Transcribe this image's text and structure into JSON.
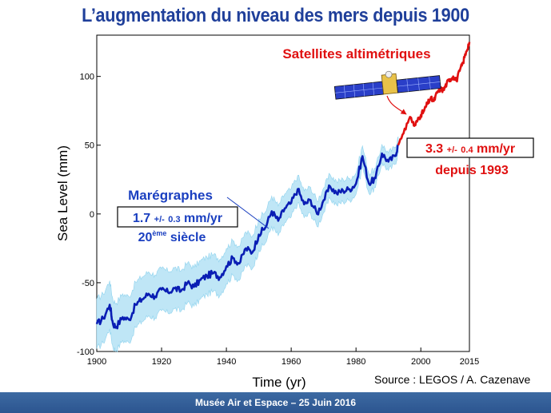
{
  "title": "L’augmentation du niveau des mers depuis 1900",
  "footer": "Musée Air et Espace – 25 Juin 2016",
  "source": "Source : LEGOS / A. Cazenave",
  "colors": {
    "title": "#1f3f9a",
    "tide": "#0a1eb4",
    "band": "#bfe6f6",
    "satellite": "#e01010"
  },
  "icons": [
    "satellite-icon"
  ],
  "chart_data": {
    "type": "line",
    "xlabel": "Time (yr)",
    "ylabel": "Sea Level (mm)",
    "xlim": [
      1900,
      2015
    ],
    "ylim": [
      -100,
      130
    ],
    "xticks": [
      1900,
      1920,
      1940,
      1960,
      1980,
      2000,
      2015
    ],
    "yticks": [
      -100,
      -50,
      0,
      50,
      100
    ],
    "grid": false,
    "series": [
      {
        "name": "Marégraphes",
        "x": [
          1900,
          1902,
          1904,
          1905,
          1906,
          1908,
          1910,
          1912,
          1914,
          1916,
          1918,
          1920,
          1922,
          1924,
          1926,
          1928,
          1930,
          1932,
          1934,
          1936,
          1938,
          1940,
          1942,
          1944,
          1946,
          1948,
          1950,
          1952,
          1954,
          1956,
          1958,
          1960,
          1962,
          1964,
          1966,
          1968,
          1970,
          1972,
          1974,
          1976,
          1978,
          1980,
          1982,
          1984,
          1986,
          1988,
          1990,
          1992,
          1993
        ],
        "y": [
          -80,
          -76,
          -66,
          -80,
          -82,
          -75,
          -77,
          -66,
          -62,
          -58,
          -60,
          -55,
          -57,
          -54,
          -56,
          -50,
          -53,
          -48,
          -45,
          -43,
          -46,
          -38,
          -32,
          -36,
          -25,
          -28,
          -15,
          -10,
          2,
          -5,
          4,
          8,
          18,
          7,
          10,
          0,
          10,
          20,
          15,
          17,
          18,
          22,
          42,
          22,
          26,
          44,
          38,
          42,
          50
        ]
      },
      {
        "name": "Satellites altimétriques",
        "x": [
          1993,
          1995,
          1997,
          1998,
          1999,
          2000,
          2001,
          2002,
          2003,
          2004,
          2005,
          2006,
          2007,
          2008,
          2009,
          2010,
          2011,
          2012,
          2013,
          2014,
          2015
        ],
        "y": [
          50,
          62,
          70,
          64,
          68,
          72,
          75,
          80,
          84,
          82,
          88,
          91,
          90,
          95,
          98,
          100,
          97,
          104,
          110,
          118,
          125
        ]
      }
    ],
    "uncertainty_band": "±",
    "annotations": {
      "tide": {
        "line1": "Marégraphes",
        "rate": "1.7",
        "pm": "+/-",
        "err": "0.3",
        "unit": "mm/yr",
        "century": "20",
        "sup": "ème",
        "word": "siècle"
      },
      "sat": {
        "rate": "3.3",
        "pm": "+/-",
        "err": "0.4",
        "unit": "mm/yr",
        "since": "depuis 1993"
      },
      "satellite_label": "Satellites altimétriques"
    }
  }
}
